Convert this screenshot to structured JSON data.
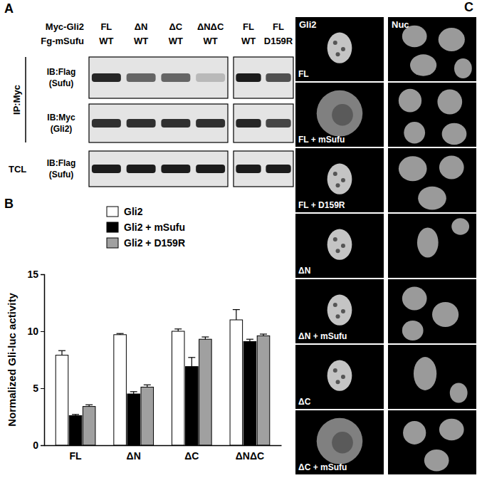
{
  "panel_labels": [
    "A",
    "B",
    "C"
  ],
  "panel_a": {
    "header_rows": [
      {
        "name": "Myc-Gli2",
        "values": [
          [
            "FL",
            "ΔN",
            "ΔC",
            "ΔNΔC"
          ],
          [
            "FL",
            "FL"
          ]
        ]
      },
      {
        "name": "Fg-mSufu",
        "values": [
          [
            "WT",
            "WT",
            "WT",
            "WT"
          ],
          [
            "WT",
            "D159R"
          ]
        ]
      }
    ],
    "sections": [
      {
        "name": "IP:Myc",
        "blots": [
          {
            "label": [
              "IB:Flag",
              "(Sufu)"
            ],
            "intensity": [
              [
                0.9,
                0.6,
                0.6,
                0.2
              ],
              [
                0.95,
                0.7
              ]
            ]
          },
          {
            "label": [
              "IB:Myc",
              "(Gli2)"
            ],
            "intensity": [
              [
                0.85,
                0.85,
                0.85,
                0.85
              ],
              [
                0.9,
                0.75
              ]
            ]
          }
        ]
      },
      {
        "name": "TCL",
        "blots": [
          {
            "label": [
              "IB:Flag",
              "(Sufu)"
            ],
            "intensity": [
              [
                0.95,
                0.95,
                0.95,
                0.95
              ],
              [
                0.95,
                0.95
              ]
            ]
          }
        ]
      }
    ]
  },
  "chart_data": {
    "type": "bar",
    "ylabel": "Normalized Gli-luc activity",
    "categories": [
      "FL",
      "ΔN",
      "ΔC",
      "ΔNΔC"
    ],
    "series": [
      {
        "name": "Gli2",
        "color": "#ffffff",
        "values": [
          7.9,
          9.7,
          10.0,
          11.0
        ],
        "errors": [
          0.4,
          0.1,
          0.2,
          0.9
        ]
      },
      {
        "name": "Gli2 + mSufu",
        "color": "#000000",
        "values": [
          2.6,
          4.5,
          6.9,
          9.1
        ],
        "errors": [
          0.1,
          0.2,
          0.8,
          0.2
        ]
      },
      {
        "name": "Gli2 + D159R",
        "color": "#a0a0a0",
        "values": [
          3.4,
          5.1,
          9.3,
          9.6
        ],
        "errors": [
          0.15,
          0.2,
          0.2,
          0.15
        ]
      }
    ],
    "ylim": [
      0,
      15
    ],
    "yticks": [
      0,
      5,
      10,
      15
    ],
    "legend": "top-left"
  },
  "panel_c": {
    "columns": [
      "Gli2",
      "Nuc"
    ],
    "rows": [
      "FL",
      "FL + mSufu",
      "FL + D159R",
      "ΔN",
      "ΔN + mSufu",
      "ΔC",
      "ΔC + mSufu"
    ]
  }
}
